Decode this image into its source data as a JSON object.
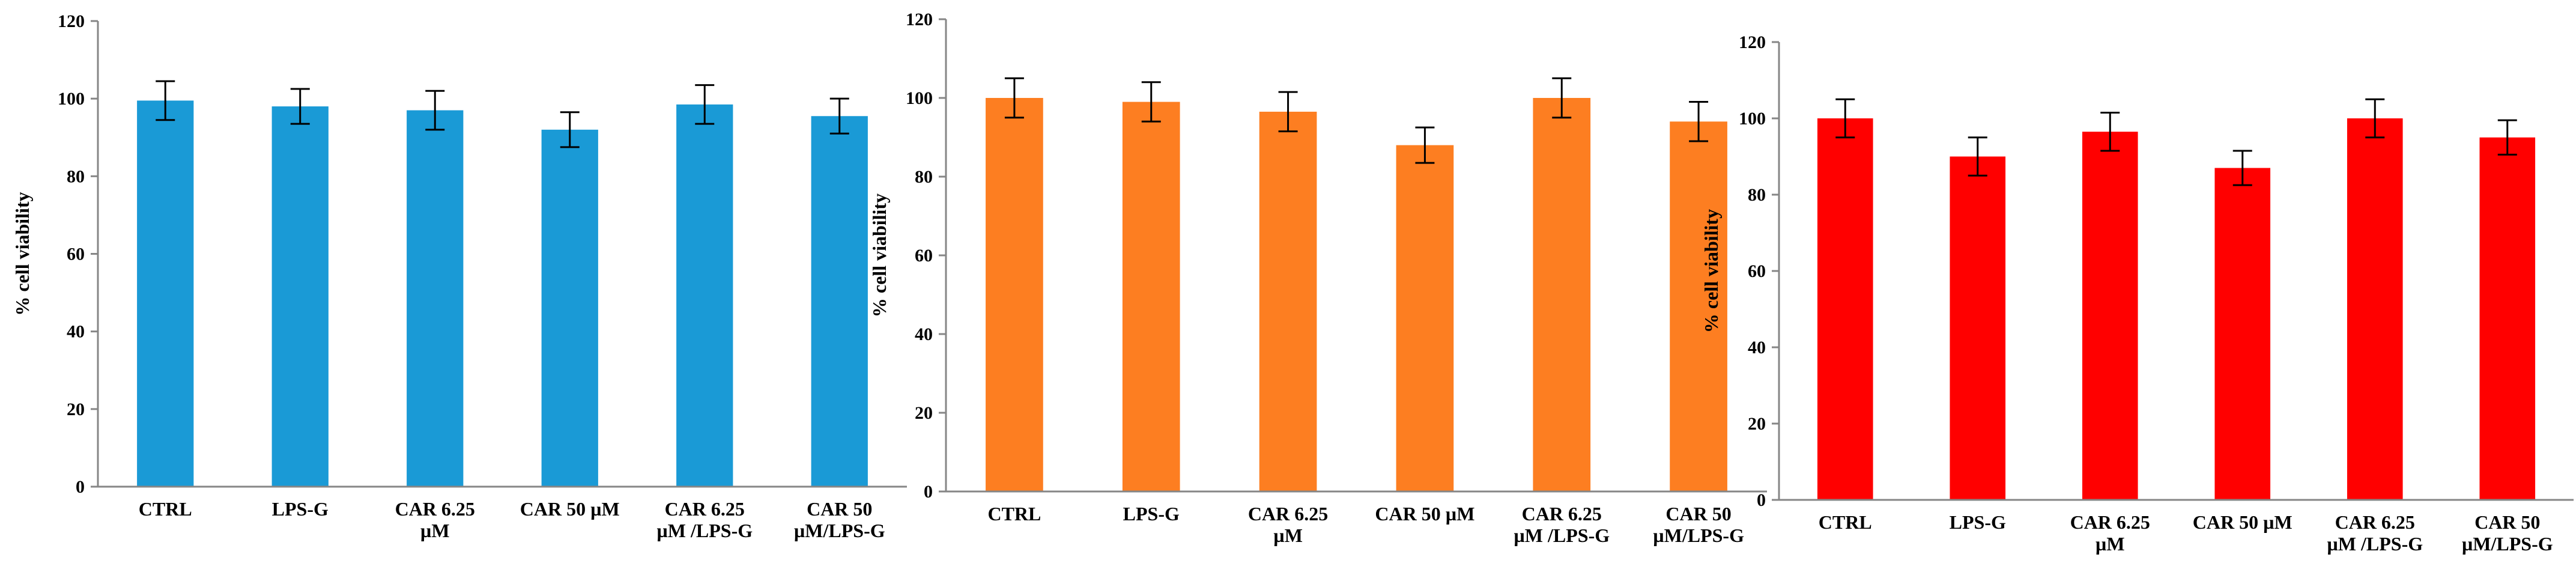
{
  "chart_data": [
    {
      "type": "bar",
      "title": "",
      "xlabel": "",
      "ylabel": "% cell viability",
      "ylim": [
        0,
        120
      ],
      "yticks": [
        0,
        20,
        40,
        60,
        80,
        100,
        120
      ],
      "grid": false,
      "color": "#1a9ad6",
      "categories": [
        [
          "CTRL"
        ],
        [
          "LPS-G"
        ],
        [
          "CAR 6.25",
          "µM"
        ],
        [
          "CAR 50 µM"
        ],
        [
          "CAR 6.25",
          "µM /LPS-G"
        ],
        [
          "CAR 50",
          "µM/LPS-G"
        ]
      ],
      "values": [
        99.5,
        98,
        97,
        92,
        98.5,
        95.5
      ],
      "errors": [
        5,
        4.5,
        5,
        4.5,
        5,
        4.5
      ]
    },
    {
      "type": "bar",
      "title": "",
      "xlabel": "",
      "ylabel": "% cell viability",
      "ylim": [
        0,
        120
      ],
      "yticks": [
        0,
        20,
        40,
        60,
        80,
        100,
        120
      ],
      "grid": false,
      "color": "#fd7e21",
      "categories": [
        [
          "CTRL"
        ],
        [
          "LPS-G"
        ],
        [
          "CAR 6.25",
          "µM"
        ],
        [
          "CAR 50 µM"
        ],
        [
          "CAR 6.25",
          "µM /LPS-G"
        ],
        [
          "CAR 50",
          "µM/LPS-G"
        ]
      ],
      "values": [
        100,
        99,
        96.5,
        88,
        100,
        94
      ],
      "errors": [
        5,
        5,
        5,
        4.5,
        5,
        5
      ]
    },
    {
      "type": "bar",
      "title": "",
      "xlabel": "",
      "ylabel": "% cell viability",
      "ylim": [
        0,
        120
      ],
      "yticks": [
        0,
        20,
        40,
        60,
        80,
        100,
        120
      ],
      "grid": false,
      "color": "#ff0000",
      "categories": [
        [
          "CTRL"
        ],
        [
          "LPS-G"
        ],
        [
          "CAR 6.25",
          "µM"
        ],
        [
          "CAR 50 µM"
        ],
        [
          "CAR 6.25",
          "µM /LPS-G"
        ],
        [
          "CAR 50",
          "µM/LPS-G"
        ]
      ],
      "values": [
        100,
        90,
        96.5,
        87,
        100,
        95
      ],
      "errors": [
        5,
        5,
        5,
        4.5,
        5,
        4.5
      ]
    }
  ]
}
